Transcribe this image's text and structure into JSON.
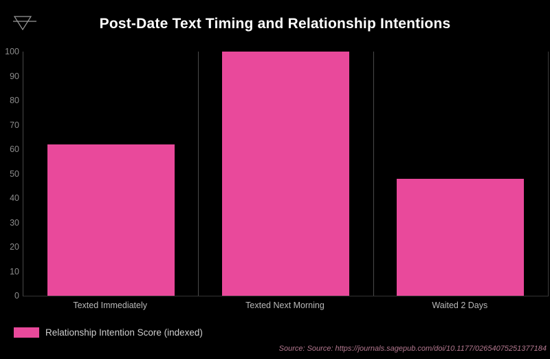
{
  "title": "Post-Date Text Timing and Relationship Intentions",
  "icon": "triangle-line-logo-icon",
  "colors": {
    "background": "#000000",
    "bar": "#e9499b",
    "axis": "#4a4a4a",
    "title_text": "#ffffff",
    "tick_text": "#8c8c8c",
    "category_text": "#b9b9b9",
    "legend_text": "#cfcfcf",
    "source_text": "#b3788f"
  },
  "legend": {
    "label": "Relationship Intention Score (indexed)"
  },
  "source": "Source: Source: https://journals.sagepub.com/doi/10.1177/02654075251377184",
  "chart_data": {
    "type": "bar",
    "title": "Post-Date Text Timing and Relationship Intentions",
    "categories": [
      "Texted Immediately",
      "Texted Next Morning",
      "Waited 2 Days"
    ],
    "values": [
      62,
      100,
      48
    ],
    "series_name": "Relationship Intention Score (indexed)",
    "xlabel": "",
    "ylabel": "",
    "ylim": [
      0,
      100
    ],
    "yticks": [
      0,
      10,
      20,
      30,
      40,
      50,
      60,
      70,
      80,
      90,
      100
    ],
    "grid": false,
    "legend_position": "bottom-left",
    "bar_color": "#e9499b"
  }
}
